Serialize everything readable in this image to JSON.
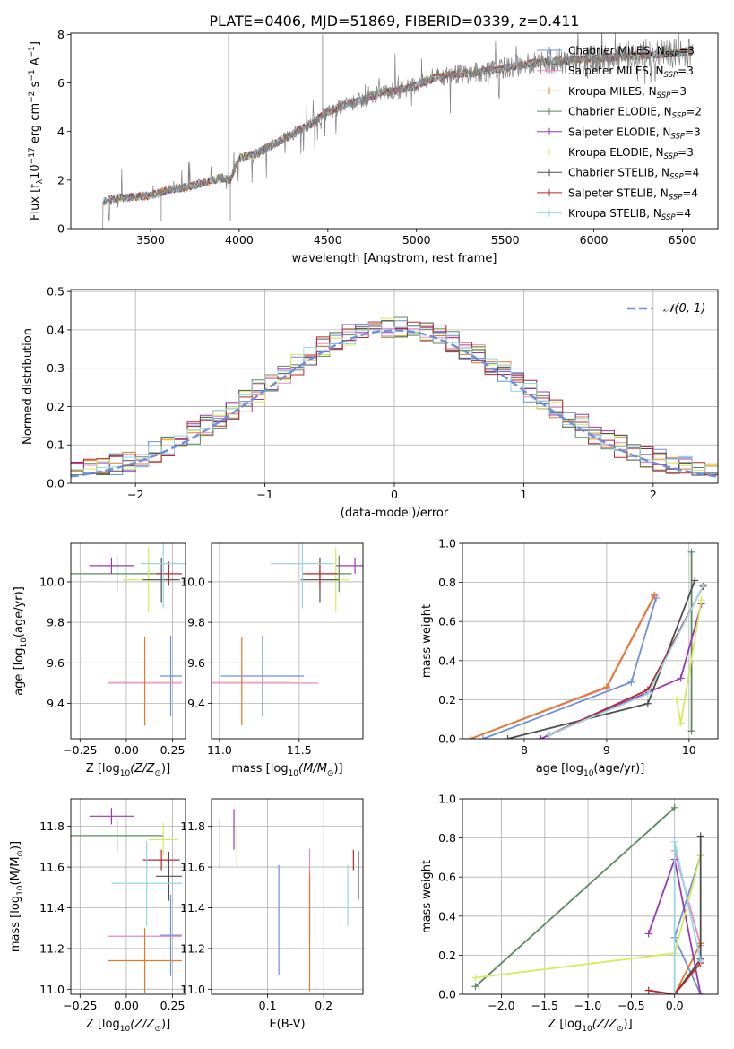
{
  "title": "PLATE=0406, MJD=51869, FIBERID=0339, z=0.411",
  "models": [
    {
      "label": "Chabrier MILES, N",
      "sub": "SSP",
      "suffix": "=3",
      "color": "#6f8fdc"
    },
    {
      "label": "Salpeter MILES, N",
      "sub": "SSP",
      "suffix": "=3",
      "color": "#e78ac3"
    },
    {
      "label": "Kroupa MILES, N",
      "sub": "SSP",
      "suffix": "=3",
      "color": "#e07b2a"
    },
    {
      "label": "Chabrier ELODIE, N",
      "sub": "SSP",
      "suffix": "=2",
      "color": "#5b8a5e"
    },
    {
      "label": "Salpeter ELODIE, N",
      "sub": "SSP",
      "suffix": "=3",
      "color": "#9c37b5"
    },
    {
      "label": "Kroupa ELODIE, N",
      "sub": "SSP",
      "suffix": "=3",
      "color": "#d6ea5a"
    },
    {
      "label": "Chabrier STELIB, N",
      "sub": "SSP",
      "suffix": "=4",
      "color": "#4d4d4d"
    },
    {
      "label": "Salpeter STELIB, N",
      "sub": "SSP",
      "suffix": "=4",
      "color": "#b5282c"
    },
    {
      "label": "Kroupa STELIB, N",
      "sub": "SSP",
      "suffix": "=4",
      "color": "#96d5e3"
    }
  ],
  "chart_data": [
    {
      "id": "spectrum",
      "type": "line",
      "xlabel": "wavelength [Angstrom, rest frame]",
      "ylabel": "Flux [f",
      "ylabel_sub": "λ",
      "ylabel_rest": "10",
      "ylabel_exp1": "−17",
      "ylabel_mid": " erg cm",
      "ylabel_exp2": "−2",
      "ylabel_mid2": " s",
      "ylabel_exp3": "−1",
      "ylabel_mid3": " A",
      "ylabel_exp4": "−1",
      "ylabel_end": "]",
      "xlim": [
        3050,
        6700
      ],
      "ylim": [
        0,
        8.05
      ],
      "xticks": [
        3500,
        4000,
        4500,
        5000,
        5500,
        6000,
        6500
      ],
      "yticks": [
        0,
        2,
        4,
        6,
        8
      ],
      "grid": false,
      "legend": "upper right",
      "data_color": "#808080",
      "continuum": [
        [
          3050,
          null
        ],
        [
          3230,
          0.0
        ],
        [
          3232,
          1.1
        ],
        [
          3300,
          1.25
        ],
        [
          3400,
          1.3
        ],
        [
          3500,
          1.35
        ],
        [
          3600,
          1.6
        ],
        [
          3700,
          1.7
        ],
        [
          3800,
          1.9
        ],
        [
          3900,
          2.1
        ],
        [
          3950,
          2.0
        ],
        [
          4000,
          2.9
        ],
        [
          4100,
          3.1
        ],
        [
          4200,
          3.5
        ],
        [
          4300,
          3.9
        ],
        [
          4400,
          4.3
        ],
        [
          4500,
          4.8
        ],
        [
          4600,
          5.1
        ],
        [
          4700,
          5.3
        ],
        [
          4800,
          5.6
        ],
        [
          4900,
          5.7
        ],
        [
          5000,
          5.9
        ],
        [
          5100,
          6.2
        ],
        [
          5200,
          6.35
        ],
        [
          5300,
          6.4
        ],
        [
          5400,
          6.5
        ],
        [
          5500,
          6.6
        ],
        [
          5600,
          6.75
        ],
        [
          5700,
          6.85
        ],
        [
          5800,
          6.9
        ],
        [
          5900,
          6.95
        ],
        [
          6000,
          7.0
        ],
        [
          6100,
          7.05
        ],
        [
          6200,
          7.1
        ],
        [
          6300,
          7.15
        ],
        [
          6400,
          7.2
        ],
        [
          6500,
          7.25
        ],
        [
          6560,
          7.3
        ]
      ],
      "spikes": [
        [
          3940,
          8.0
        ],
        [
          4470,
          8.0
        ],
        [
          3950,
          0.3
        ],
        [
          3560,
          0.3
        ]
      ]
    },
    {
      "id": "residuals",
      "type": "histogram",
      "xlabel": "(data-model)/error",
      "ylabel": "Normed distribution",
      "xlim": [
        -2.5,
        2.5
      ],
      "ylim": [
        0,
        0.505
      ],
      "xticks": [
        -2,
        -1,
        0,
        1,
        2
      ],
      "yticks": [
        0.0,
        0.1,
        0.2,
        0.3,
        0.4,
        0.5
      ],
      "grid": true,
      "legend": "upper right",
      "gauss_label": "𝒩(0, 1)",
      "gauss_color": "#6f8fdc",
      "bin_width": 0.1
    },
    {
      "id": "age-vs-Z",
      "type": "errorbar",
      "xlabel": "Z [log",
      "xlabel_sub": "10",
      "xlabel_rest": "(Z/Z",
      "xlabel_sub2": "⊙",
      "xlabel_end": ")]",
      "ylabel": "age  [log",
      "ylabel_sub": "10",
      "ylabel_rest": "(age/yr)]",
      "xlim": [
        -0.3,
        0.32
      ],
      "ylim": [
        9.225,
        10.19
      ],
      "xticks": [
        -0.25,
        0.0,
        0.25
      ],
      "xtick_labels": [
        "−0.25",
        "0.00",
        "0.25"
      ],
      "yticks": [
        9.4,
        9.6,
        9.8,
        10.0
      ],
      "grid": true,
      "points": [
        {
          "m": 0,
          "x": 0.24,
          "y": 9.535,
          "xerr": 0.06,
          "yerr": 0.2
        },
        {
          "m": 1,
          "x": 0.1,
          "y": 9.5,
          "xerr": 0.2,
          "yerr": 0.0
        },
        {
          "m": 2,
          "x": 0.1,
          "y": 9.51,
          "xerr": 0.2,
          "yerr": 0.22
        },
        {
          "m": 3,
          "x": -0.05,
          "y": 10.04,
          "xerr": 0.25,
          "yerr": 0.09
        },
        {
          "m": 4,
          "x": -0.08,
          "y": 10.08,
          "xerr": 0.12,
          "yerr": 0.04
        },
        {
          "m": 5,
          "x": 0.12,
          "y": 10.01,
          "xerr": 0.14,
          "yerr": 0.16
        },
        {
          "m": 6,
          "x": 0.19,
          "y": 10.01,
          "xerr": 0.1,
          "yerr": 0.11
        },
        {
          "m": 7,
          "x": 0.23,
          "y": 10.04,
          "xerr": 0.07,
          "yerr": 0.06
        },
        {
          "m": 8,
          "x": 0.2,
          "y": 10.09,
          "xerr": 0.12,
          "yerr": 0.22
        }
      ]
    },
    {
      "id": "age-vs-mass",
      "type": "errorbar",
      "xlabel": "mass [log",
      "xlabel_sub": "10",
      "xlabel_rest": "(M/M",
      "xlabel_sub2": "⊙",
      "xlabel_end": ")]",
      "xlim": [
        10.95,
        11.9
      ],
      "ylim": [
        9.225,
        10.19
      ],
      "xticks": [
        11.0,
        11.5
      ],
      "xtick_labels": [
        "11.0",
        "11.5"
      ],
      "yticks": [
        9.4,
        9.6,
        9.8,
        10.0
      ],
      "grid": true,
      "points": [
        {
          "m": 0,
          "x": 11.27,
          "y": 9.535,
          "xerr": 0.26,
          "yerr": 0.2
        },
        {
          "m": 1,
          "x": 11.26,
          "y": 9.5,
          "xerr": 0.36,
          "yerr": 0.0
        },
        {
          "m": 2,
          "x": 11.14,
          "y": 9.51,
          "xerr": 0.32,
          "yerr": 0.22
        },
        {
          "m": 3,
          "x": 11.75,
          "y": 10.04,
          "xerr": 0.08,
          "yerr": 0.09
        },
        {
          "m": 4,
          "x": 11.85,
          "y": 10.08,
          "xerr": 0.12,
          "yerr": 0.04
        },
        {
          "m": 5,
          "x": 11.73,
          "y": 10.01,
          "xerr": 0.08,
          "yerr": 0.16
        },
        {
          "m": 6,
          "x": 11.63,
          "y": 10.01,
          "xerr": 0.12,
          "yerr": 0.11
        },
        {
          "m": 7,
          "x": 11.63,
          "y": 10.04,
          "xerr": 0.11,
          "yerr": 0.06
        },
        {
          "m": 8,
          "x": 11.52,
          "y": 10.09,
          "xerr": 0.2,
          "yerr": 0.22
        }
      ]
    },
    {
      "id": "weight-vs-age",
      "type": "line",
      "xlabel": "age  [log",
      "xlabel_sub": "10",
      "xlabel_rest": "(age/yr)]",
      "ylabel": "mass weight",
      "xlim": [
        7.25,
        10.35
      ],
      "ylim": [
        0,
        1.0
      ],
      "xticks": [
        8,
        9,
        10
      ],
      "yticks": [
        0.0,
        0.2,
        0.4,
        0.6,
        0.8,
        1.0
      ],
      "grid": true,
      "lines": [
        {
          "m": 0,
          "x": [
            7.5,
            9.3,
            9.6
          ],
          "y": [
            0.0,
            0.29,
            0.72
          ]
        },
        {
          "m": 1,
          "x": [
            7.35,
            9.0,
            9.58
          ],
          "y": [
            0.0,
            0.26,
            0.73
          ]
        },
        {
          "m": 2,
          "x": [
            7.35,
            9.0,
            9.58
          ],
          "y": [
            0.0,
            0.265,
            0.735
          ]
        },
        {
          "m": 3,
          "x": [
            10.03,
            10.03
          ],
          "y": [
            0.04,
            0.955
          ]
        },
        {
          "m": 4,
          "x": [
            8.2,
            9.9,
            10.15
          ],
          "y": [
            0.0,
            0.31,
            0.69
          ]
        },
        {
          "m": 5,
          "x": [
            9.85,
            9.9,
            10.15
          ],
          "y": [
            0.2,
            0.08,
            0.71
          ]
        },
        {
          "m": 6,
          "x": [
            7.8,
            9.5,
            10.07
          ],
          "y": [
            0.0,
            0.18,
            0.81
          ]
        },
        {
          "m": 7,
          "x": [
            8.3,
            9.5,
            10.17
          ],
          "y": [
            0.02,
            0.25,
            0.78
          ]
        },
        {
          "m": 8,
          "x": [
            8.3,
            9.5,
            10.18
          ],
          "y": [
            0.02,
            0.23,
            0.79
          ]
        }
      ]
    },
    {
      "id": "mass-vs-Z",
      "type": "errorbar",
      "xlabel": "Z [log",
      "xlabel_sub": "10",
      "xlabel_rest": "(Z/Z",
      "xlabel_sub2": "⊙",
      "xlabel_end": ")]",
      "ylabel": "mass [log",
      "ylabel_sub": "10",
      "ylabel_rest": "(M/M",
      "ylabel_sub2": "⊙",
      "ylabel_end": ")]",
      "xlim": [
        -0.3,
        0.32
      ],
      "ylim": [
        10.975,
        11.935
      ],
      "xticks": [
        -0.25,
        0.0,
        0.25
      ],
      "xtick_labels": [
        "−0.25",
        "0.00",
        "0.25"
      ],
      "yticks": [
        11.0,
        11.2,
        11.4,
        11.6,
        11.8
      ],
      "grid": true,
      "points": [
        {
          "m": 0,
          "x": 0.24,
          "y": 11.265,
          "xerr": 0.06,
          "yerr": 0.2
        },
        {
          "m": 1,
          "x": 0.1,
          "y": 11.26,
          "xerr": 0.2,
          "yerr": 0.0
        },
        {
          "m": 2,
          "x": 0.1,
          "y": 11.14,
          "xerr": 0.2,
          "yerr": 0.16
        },
        {
          "m": 3,
          "x": -0.05,
          "y": 11.755,
          "xerr": 0.25,
          "yerr": 0.08
        },
        {
          "m": 4,
          "x": -0.08,
          "y": 11.85,
          "xerr": 0.12,
          "yerr": 0.04
        },
        {
          "m": 5,
          "x": 0.2,
          "y": 11.735,
          "xerr": 0.08,
          "yerr": 0.08
        },
        {
          "m": 6,
          "x": 0.23,
          "y": 11.555,
          "xerr": 0.07,
          "yerr": 0.12
        },
        {
          "m": 7,
          "x": 0.19,
          "y": 11.635,
          "xerr": 0.1,
          "yerr": 0.05
        },
        {
          "m": 8,
          "x": 0.11,
          "y": 11.52,
          "xerr": 0.19,
          "yerr": 0.21
        }
      ]
    },
    {
      "id": "mass-vs-ebv",
      "type": "errorbar",
      "xlabel": "E(B-V)",
      "xlim": [
        0.0,
        0.27
      ],
      "ylim": [
        10.975,
        11.935
      ],
      "xticks": [
        0.1,
        0.2
      ],
      "xtick_labels": [
        "0.1",
        "0.2"
      ],
      "yticks": [
        11.0,
        11.2,
        11.4,
        11.6,
        11.8
      ],
      "grid": true,
      "points": [
        {
          "m": 0,
          "x": 0.12,
          "y": 11.34,
          "xerr": 0.0,
          "yerr": 0.27
        },
        {
          "m": 1,
          "x": 0.175,
          "y": 11.46,
          "xerr": 0.0,
          "yerr": 0.23
        },
        {
          "m": 2,
          "x": 0.175,
          "y": 11.28,
          "xerr": 0.0,
          "yerr": 0.29
        },
        {
          "m": 3,
          "x": 0.015,
          "y": 11.715,
          "xerr": 0.0,
          "yerr": 0.12
        },
        {
          "m": 4,
          "x": 0.04,
          "y": 11.785,
          "xerr": 0.0,
          "yerr": 0.1
        },
        {
          "m": 5,
          "x": 0.045,
          "y": 11.7,
          "xerr": 0.0,
          "yerr": 0.1
        },
        {
          "m": 6,
          "x": 0.262,
          "y": 11.56,
          "xerr": 0.0,
          "yerr": 0.12
        },
        {
          "m": 7,
          "x": 0.253,
          "y": 11.635,
          "xerr": 0.0,
          "yerr": 0.05
        },
        {
          "m": 8,
          "x": 0.243,
          "y": 11.46,
          "xerr": 0.0,
          "yerr": 0.15
        }
      ]
    },
    {
      "id": "weight-vs-Z",
      "type": "line",
      "xlabel": "Z [log",
      "xlabel_sub": "10",
      "xlabel_rest": "(Z/Z",
      "xlabel_sub2": "⊙",
      "xlabel_end": ")]",
      "ylabel": "mass weight",
      "xlim": [
        -2.45,
        0.5
      ],
      "ylim": [
        0,
        1.0
      ],
      "xticks": [
        -2.0,
        -1.5,
        -1.0,
        -0.5,
        0.0
      ],
      "xtick_labels": [
        "−2.0",
        "−1.5",
        "−1.0",
        "−0.5",
        "0.0"
      ],
      "yticks": [
        0.0,
        0.2,
        0.4,
        0.6,
        0.8,
        1.0
      ],
      "grid": true,
      "lines": [
        {
          "m": 0,
          "x": [
            0.3,
            0.0,
            0.3
          ],
          "y": [
            0.0,
            0.29,
            0.71
          ]
        },
        {
          "m": 1,
          "x": [
            0.3,
            0.0
          ],
          "y": [
            0.25,
            0.735
          ]
        },
        {
          "m": 2,
          "x": [
            0.3,
            0.0,
            0.3
          ],
          "y": [
            0.26,
            0.0,
            0.26
          ]
        },
        {
          "m": 3,
          "x": [
            -2.3,
            0.0
          ],
          "y": [
            0.04,
            0.955
          ]
        },
        {
          "m": 4,
          "x": [
            -0.3,
            0.0,
            0.3
          ],
          "y": [
            0.31,
            0.69,
            0.0
          ]
        },
        {
          "m": 5,
          "x": [
            -2.3,
            0.0,
            0.3
          ],
          "y": [
            0.085,
            0.21,
            0.71
          ]
        },
        {
          "m": 6,
          "x": [
            0.0,
            0.3,
            0.3
          ],
          "y": [
            0.0,
            0.18,
            0.81
          ]
        },
        {
          "m": 7,
          "x": [
            -0.3,
            0.0,
            0.3
          ],
          "y": [
            0.02,
            0.0,
            0.16
          ]
        },
        {
          "m": 8,
          "x": [
            0.0,
            0.0,
            0.3
          ],
          "y": [
            0.0,
            0.78,
            0.17
          ]
        }
      ]
    }
  ]
}
